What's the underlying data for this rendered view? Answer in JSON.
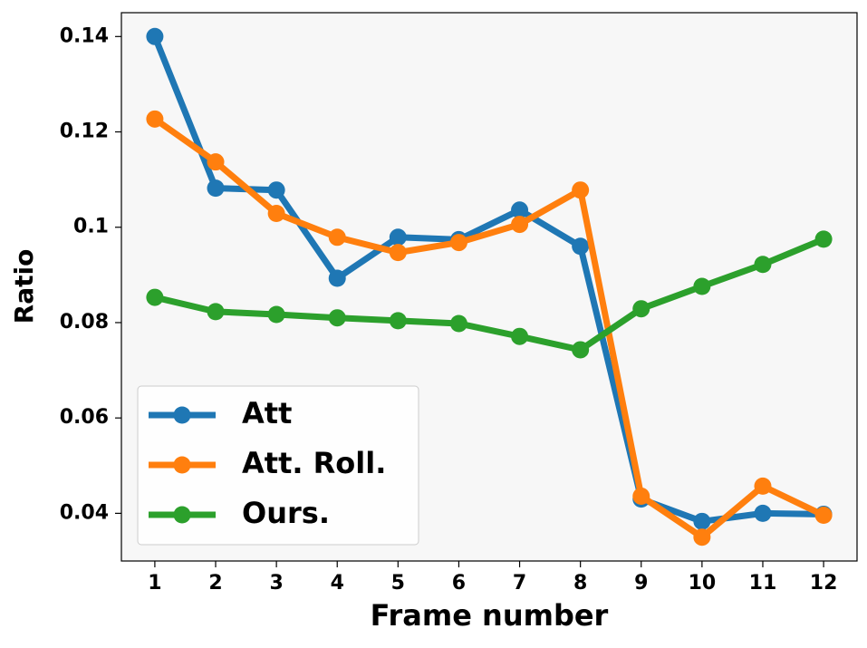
{
  "chart_data": {
    "type": "line",
    "x_label": "Frame number",
    "y_label": "Ratio",
    "x": [
      1,
      2,
      3,
      4,
      5,
      6,
      7,
      8,
      9,
      10,
      11,
      12
    ],
    "series": [
      {
        "name": "Att",
        "color": "#1f77b4",
        "values": [
          0.14,
          0.1082,
          0.1078,
          0.0893,
          0.0979,
          0.0974,
          0.1036,
          0.096,
          0.043,
          0.0383,
          0.04,
          0.0398
        ]
      },
      {
        "name": "Att. Roll.",
        "color": "#ff7f0e",
        "values": [
          0.1227,
          0.1137,
          0.1029,
          0.0979,
          0.0947,
          0.0968,
          0.1006,
          0.1078,
          0.0436,
          0.035,
          0.0457,
          0.0396
        ]
      },
      {
        "name": "Ours.",
        "color": "#2ca02c",
        "values": [
          0.0853,
          0.0823,
          0.0817,
          0.081,
          0.0804,
          0.0798,
          0.0771,
          0.0743,
          0.0829,
          0.0876,
          0.0922,
          0.0975
        ]
      }
    ],
    "xlim": [
      0.45,
      12.55
    ],
    "xticks": [
      1,
      2,
      3,
      4,
      5,
      6,
      7,
      8,
      9,
      10,
      11,
      12
    ],
    "ylim": [
      0.03,
      0.145
    ],
    "yticks": [
      0.04,
      0.06,
      0.08,
      0.1,
      0.12,
      0.14
    ],
    "legend": "lower left",
    "plot_background": "#f7f7f7"
  }
}
